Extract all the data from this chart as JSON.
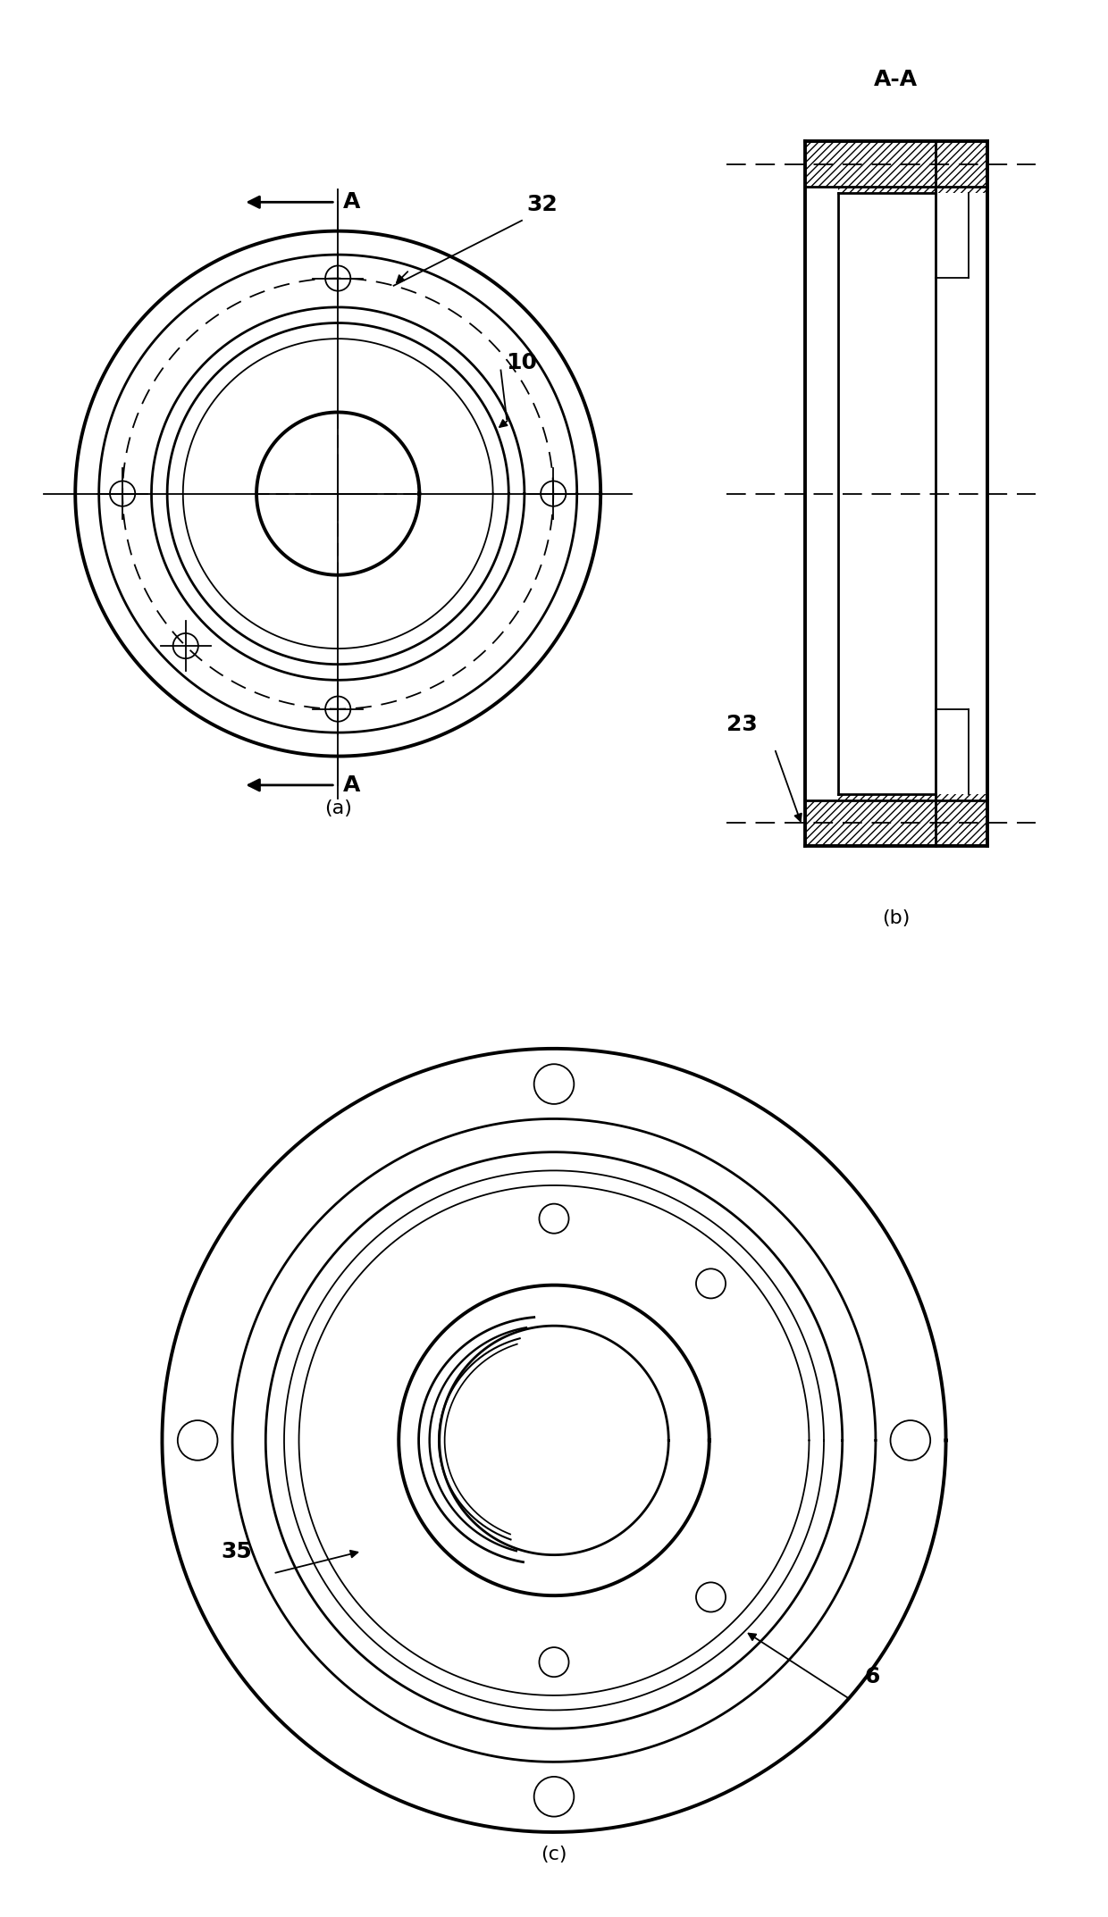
{
  "bg_color": "#ffffff",
  "fig_width": 12.4,
  "fig_height": 21.46,
  "label_a": "A",
  "label_aa": "A-A",
  "label_32": "32",
  "label_10": "10",
  "label_23": "23",
  "label_6": "6",
  "label_35": "35",
  "label_a_fig": "(a)",
  "label_b_fig": "(b)",
  "label_c_fig": "(c)",
  "lw_thick": 2.8,
  "lw_med": 2.0,
  "lw_thin": 1.3,
  "fontsize_label": 18,
  "fontsize_fig": 16
}
